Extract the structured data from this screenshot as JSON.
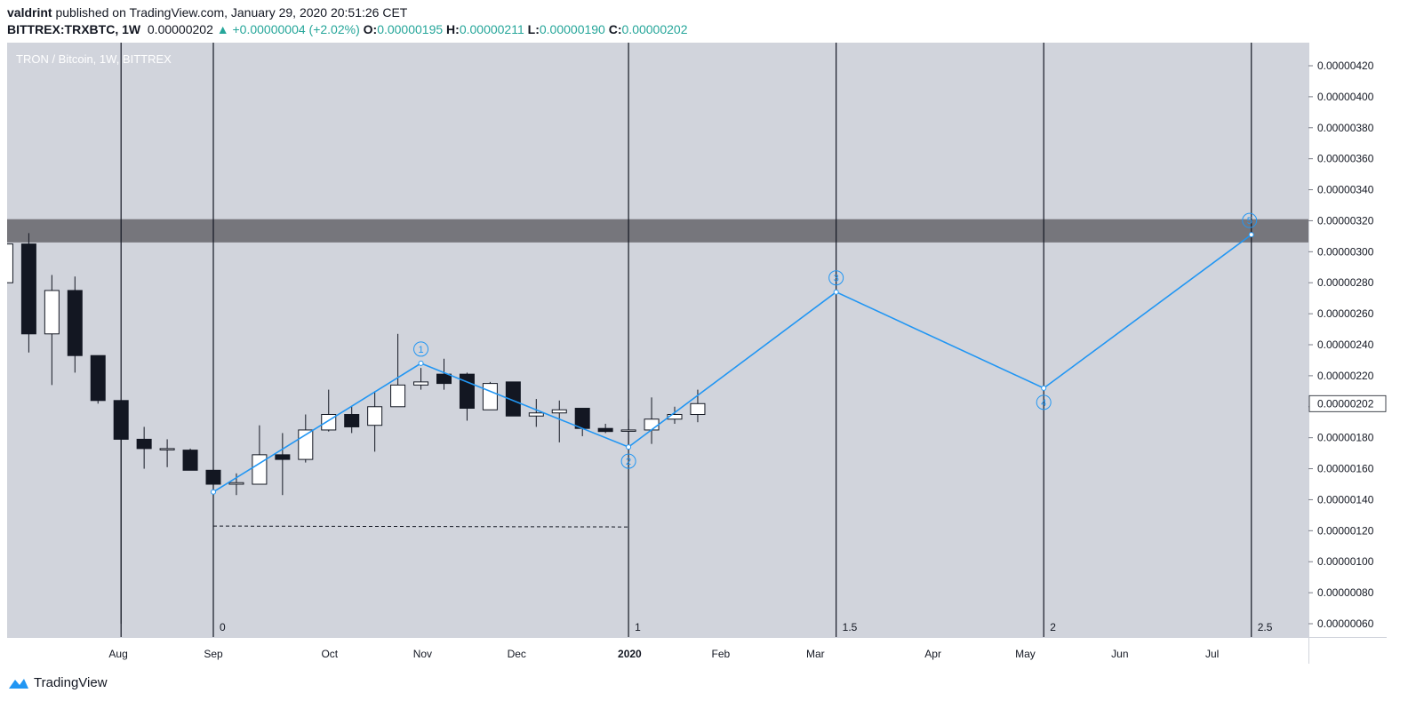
{
  "header": {
    "author": "valdrint",
    "published_text": "published on TradingView.com, January 29, 2020 20:51:26 CET",
    "symbol_line": "BITTREX:TRXBTC, 1W",
    "last": "0.00000202",
    "change": "+0.00000004 (+2.02%)",
    "o_label": "O:",
    "o_value": "0.00000195",
    "h_label": "H:",
    "h_value": "0.00000211",
    "l_label": "L:",
    "l_value": "0.00000190",
    "c_label": "C:",
    "c_value": "0.00000202"
  },
  "footer": {
    "brand": "TradingView"
  },
  "colors": {
    "pane_bg": "#d1d4dc",
    "bull_body": "#ffffff",
    "bear_body": "#131722",
    "wave_line": "#2196f3",
    "zone": "#76767c",
    "price_label_bg": "#ffffff"
  },
  "chart_data": {
    "type": "candlestick",
    "title": "TRON / Bitcoin, 1W, BITTREX",
    "ylim": [
      5e-07,
      4.35e-06
    ],
    "y_ticks": [
      "0.00000420",
      "0.00000400",
      "0.00000380",
      "0.00000360",
      "0.00000340",
      "0.00000320",
      "0.00000300",
      "0.00000280",
      "0.00000260",
      "0.00000240",
      "0.00000220",
      "0.00000200",
      "0.00000180",
      "0.00000160",
      "0.00000140",
      "0.00000120",
      "0.00000100",
      "0.00000080",
      "0.00000060"
    ],
    "x_ticks": [
      {
        "label": "Jul",
        "week": -9.15
      },
      {
        "label": "Aug",
        "week": -4.12
      },
      {
        "label": "Sep",
        "week": 0
      },
      {
        "label": "Oct",
        "week": 5.04
      },
      {
        "label": "Nov",
        "week": 9.07
      },
      {
        "label": "Dec",
        "week": 13.15
      },
      {
        "label": "2020",
        "week": 18.05
      },
      {
        "label": "Feb",
        "week": 22.0
      },
      {
        "label": "Mar",
        "week": 26.1
      },
      {
        "label": "Apr",
        "week": 31.2
      },
      {
        "label": "May",
        "week": 35.2
      },
      {
        "label": "Jun",
        "week": 39.3
      },
      {
        "label": "Jul",
        "week": 43.3
      }
    ],
    "current_price": "0.00000202",
    "candles": [
      {
        "w": -9,
        "o": 2.8,
        "h": 3.2,
        "l": 2.75,
        "c": 3.05
      },
      {
        "w": -8,
        "o": 3.05,
        "h": 3.12,
        "l": 2.35,
        "c": 2.47
      },
      {
        "w": -7,
        "o": 2.47,
        "h": 2.85,
        "l": 2.14,
        "c": 2.75
      },
      {
        "w": -6,
        "o": 2.75,
        "h": 2.84,
        "l": 2.22,
        "c": 2.33
      },
      {
        "w": -5,
        "o": 2.33,
        "h": 2.33,
        "l": 2.02,
        "c": 2.04
      },
      {
        "w": -4,
        "o": 2.04,
        "h": 2.04,
        "l": 0.6,
        "c": 1.79
      },
      {
        "w": -3,
        "o": 1.79,
        "h": 1.87,
        "l": 1.6,
        "c": 1.73
      },
      {
        "w": -2,
        "o": 1.73,
        "h": 1.79,
        "l": 1.61,
        "c": 1.73
      },
      {
        "w": -1,
        "o": 1.72,
        "h": 1.73,
        "l": 1.59,
        "c": 1.59
      },
      {
        "w": 0,
        "o": 1.59,
        "h": 1.6,
        "l": 1.36,
        "c": 1.5
      },
      {
        "w": 1,
        "o": 1.5,
        "h": 1.57,
        "l": 1.43,
        "c": 1.51
      },
      {
        "w": 2,
        "o": 1.5,
        "h": 1.88,
        "l": 1.5,
        "c": 1.69
      },
      {
        "w": 3,
        "o": 1.69,
        "h": 1.83,
        "l": 1.43,
        "c": 1.66
      },
      {
        "w": 4,
        "o": 1.66,
        "h": 1.95,
        "l": 1.64,
        "c": 1.85
      },
      {
        "w": 5,
        "o": 1.85,
        "h": 2.11,
        "l": 1.84,
        "c": 1.95
      },
      {
        "w": 6,
        "o": 1.95,
        "h": 2.0,
        "l": 1.83,
        "c": 1.87
      },
      {
        "w": 7,
        "o": 1.88,
        "h": 2.1,
        "l": 1.71,
        "c": 2.0
      },
      {
        "w": 8,
        "o": 2.0,
        "h": 2.47,
        "l": 2.0,
        "c": 2.14
      },
      {
        "w": 9,
        "o": 2.14,
        "h": 2.25,
        "l": 2.11,
        "c": 2.16
      },
      {
        "w": 10,
        "o": 2.21,
        "h": 2.31,
        "l": 2.11,
        "c": 2.15
      },
      {
        "w": 11,
        "o": 2.21,
        "h": 2.22,
        "l": 1.91,
        "c": 1.99
      },
      {
        "w": 12,
        "o": 1.98,
        "h": 2.16,
        "l": 1.98,
        "c": 2.15
      },
      {
        "w": 13,
        "o": 2.16,
        "h": 2.16,
        "l": 1.94,
        "c": 1.94
      },
      {
        "w": 14,
        "o": 1.94,
        "h": 2.05,
        "l": 1.87,
        "c": 1.96
      },
      {
        "w": 15,
        "o": 1.96,
        "h": 2.04,
        "l": 1.77,
        "c": 1.98
      },
      {
        "w": 16,
        "o": 1.99,
        "h": 1.99,
        "l": 1.81,
        "c": 1.86
      },
      {
        "w": 17,
        "o": 1.86,
        "h": 1.89,
        "l": 1.83,
        "c": 1.84
      },
      {
        "w": 18,
        "o": 1.85,
        "h": 1.92,
        "l": 1.72,
        "c": 1.85
      },
      {
        "w": 19,
        "o": 1.85,
        "h": 2.06,
        "l": 1.76,
        "c": 1.92
      },
      {
        "w": 20,
        "o": 1.92,
        "h": 2.0,
        "l": 1.89,
        "c": 1.95
      },
      {
        "w": 21,
        "o": 1.95,
        "h": 2.11,
        "l": 1.9,
        "c": 2.02
      }
    ],
    "price_unit_scale": 1e-06,
    "resistance_zone": {
      "low": 3.06e-06,
      "high": 3.21e-06
    },
    "support_line": {
      "price": 1.23e-06,
      "from_week": 0,
      "to_week": 18
    },
    "fib_time_lines": [
      {
        "label": "0",
        "week": 0
      },
      {
        "label": "1",
        "week": 18
      },
      {
        "label": "1.5",
        "week": 27
      },
      {
        "label": "2",
        "week": 36
      },
      {
        "label": "2.5",
        "week": 45
      }
    ],
    "black_vertical_lines_weeks": [
      -4,
      0,
      18,
      27,
      36,
      45
    ],
    "wave_points": [
      {
        "label": "",
        "week": 0,
        "price": 1.45e-06
      },
      {
        "label": "1",
        "week": 9,
        "price": 2.28e-06
      },
      {
        "label": "2",
        "week": 18,
        "price": 1.74e-06
      },
      {
        "label": "3",
        "week": 27,
        "price": 2.74e-06
      },
      {
        "label": "4",
        "week": 36,
        "price": 2.12e-06
      },
      {
        "label": "5",
        "week": 45,
        "price": 3.11e-06
      }
    ]
  }
}
